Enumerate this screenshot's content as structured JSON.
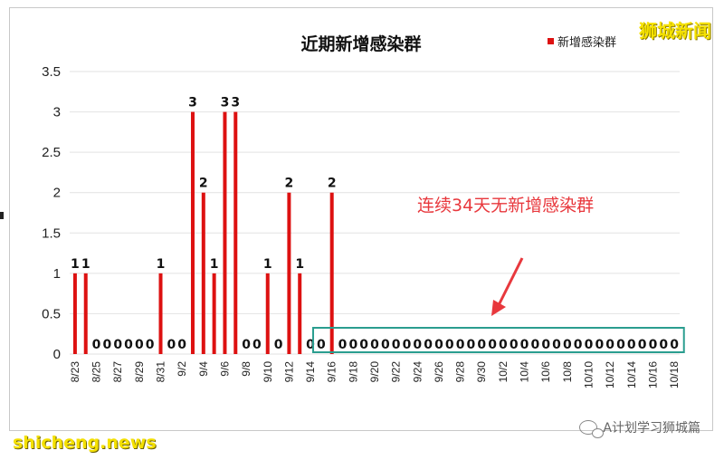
{
  "chart_data": {
    "type": "bar",
    "title": "近期新增感染群",
    "legend": {
      "label": "新增感染群",
      "position": "top-right"
    },
    "ylim": [
      0,
      3.5
    ],
    "yticks": [
      "0",
      "0.5",
      "1",
      "1.5",
      "2",
      "2.5",
      "3",
      "3.5"
    ],
    "grid": true,
    "xtick_labels": [
      "8/23",
      "8/25",
      "8/27",
      "8/29",
      "8/31",
      "9/2",
      "9/4",
      "9/6",
      "9/8",
      "9/10",
      "9/12",
      "9/14",
      "9/16",
      "9/18",
      "9/20",
      "9/22",
      "9/24",
      "9/26",
      "9/28",
      "9/30",
      "10/2",
      "10/4",
      "10/6",
      "10/8",
      "10/10",
      "10/12",
      "10/14",
      "10/16",
      "10/18"
    ],
    "categories": [
      "8/23",
      "8/24",
      "8/25",
      "8/26",
      "8/27",
      "8/28",
      "8/29",
      "8/30",
      "8/31",
      "9/1",
      "9/2",
      "9/3",
      "9/4",
      "9/5",
      "9/6",
      "9/7",
      "9/8",
      "9/9",
      "9/10",
      "9/11",
      "9/12",
      "9/13",
      "9/14",
      "9/15",
      "9/16",
      "9/17",
      "9/18",
      "9/19",
      "9/20",
      "9/21",
      "9/22",
      "9/23",
      "9/24",
      "9/25",
      "9/26",
      "9/27",
      "9/28",
      "9/29",
      "9/30",
      "10/1",
      "10/2",
      "10/3",
      "10/4",
      "10/5",
      "10/6",
      "10/7",
      "10/8",
      "10/9",
      "10/10",
      "10/11",
      "10/12",
      "10/13",
      "10/14",
      "10/15",
      "10/16",
      "10/17",
      "10/18"
    ],
    "values": [
      1,
      1,
      0,
      0,
      0,
      0,
      0,
      0,
      1,
      0,
      0,
      3,
      2,
      1,
      3,
      3,
      0,
      0,
      1,
      0,
      2,
      1,
      0,
      0,
      2,
      0,
      0,
      0,
      0,
      0,
      0,
      0,
      0,
      0,
      0,
      0,
      0,
      0,
      0,
      0,
      0,
      0,
      0,
      0,
      0,
      0,
      0,
      0,
      0,
      0,
      0,
      0,
      0,
      0,
      0,
      0,
      0
    ],
    "data_labels": [
      "1",
      "1",
      "0",
      "0",
      "0",
      "0",
      "0",
      "0",
      "1",
      "0",
      "0",
      "3",
      "2",
      "1",
      "3",
      "3",
      "0",
      "0",
      "1",
      "0",
      "2",
      "1",
      "0",
      "0",
      "2",
      "0",
      "0",
      "0",
      "0",
      "0",
      "0",
      "0",
      "0",
      "0",
      "0",
      "0",
      "0",
      "0",
      "0",
      "0",
      "0",
      "0",
      "0",
      "0",
      "0",
      "0",
      "0",
      "0",
      "0",
      "0",
      "0",
      "0",
      "0",
      "0",
      "0",
      "0",
      "0"
    ],
    "bar_color": "#dd1111",
    "annotation": "连续34天无新增感染群",
    "annotation_color": "#e8383d",
    "highlight_box_color": "#2a9d8f"
  },
  "watermarks": {
    "top_right": "狮城新闻",
    "bottom_left": "shicheng.news",
    "bottom_right": "A计划学习狮城篇"
  },
  "colors": {
    "watermark_yellow": "#f6e200"
  }
}
